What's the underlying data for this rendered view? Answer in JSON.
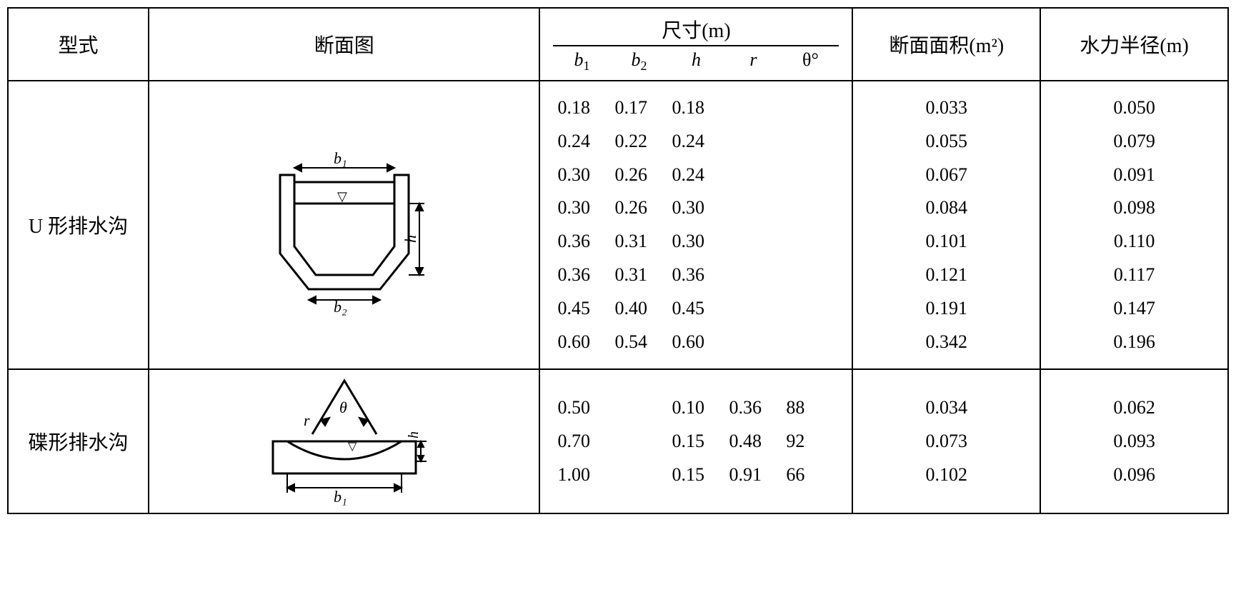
{
  "headers": {
    "type": "型式",
    "figure": "断面图",
    "dims_title": "尺寸(m)",
    "dims_sub": {
      "b1": "b",
      "b1_sub": "1",
      "b2": "b",
      "b2_sub": "2",
      "h": "h",
      "r": "r",
      "theta": "θ°"
    },
    "area": "断面面积(m²)",
    "hyd": "水力半径(m)"
  },
  "rows": [
    {
      "type_label": "U 形排水沟",
      "diagram": "u-channel",
      "data": [
        {
          "b1": "0.18",
          "b2": "0.17",
          "h": "0.18",
          "r": "",
          "theta": "",
          "area": "0.033",
          "hyd": "0.050"
        },
        {
          "b1": "0.24",
          "b2": "0.22",
          "h": "0.24",
          "r": "",
          "theta": "",
          "area": "0.055",
          "hyd": "0.079"
        },
        {
          "b1": "0.30",
          "b2": "0.26",
          "h": "0.24",
          "r": "",
          "theta": "",
          "area": "0.067",
          "hyd": "0.091"
        },
        {
          "b1": "0.30",
          "b2": "0.26",
          "h": "0.30",
          "r": "",
          "theta": "",
          "area": "0.084",
          "hyd": "0.098"
        },
        {
          "b1": "0.36",
          "b2": "0.31",
          "h": "0.30",
          "r": "",
          "theta": "",
          "area": "0.101",
          "hyd": "0.110"
        },
        {
          "b1": "0.36",
          "b2": "0.31",
          "h": "0.36",
          "r": "",
          "theta": "",
          "area": "0.121",
          "hyd": "0.117"
        },
        {
          "b1": "0.45",
          "b2": "0.40",
          "h": "0.45",
          "r": "",
          "theta": "",
          "area": "0.191",
          "hyd": "0.147"
        },
        {
          "b1": "0.60",
          "b2": "0.54",
          "h": "0.60",
          "r": "",
          "theta": "",
          "area": "0.342",
          "hyd": "0.196"
        }
      ]
    },
    {
      "type_label": "碟形排水沟",
      "diagram": "dish-channel",
      "data": [
        {
          "b1": "0.50",
          "b2": "",
          "h": "0.10",
          "r": "0.36",
          "theta": "88",
          "area": "0.034",
          "hyd": "0.062"
        },
        {
          "b1": "0.70",
          "b2": "",
          "h": "0.15",
          "r": "0.48",
          "theta": "92",
          "area": "0.073",
          "hyd": "0.093"
        },
        {
          "b1": "1.00",
          "b2": "",
          "h": "0.15",
          "r": "0.91",
          "theta": "66",
          "area": "0.102",
          "hyd": "0.096"
        }
      ]
    }
  ],
  "diagram_labels": {
    "u": {
      "b1": "b₁",
      "b2": "b₂",
      "h": "h",
      "water": "▽"
    },
    "dish": {
      "b1": "b₁",
      "h": "h",
      "r": "r",
      "theta": "θ",
      "water": "▽"
    }
  },
  "style": {
    "stroke": "#000000",
    "stroke_width": 3,
    "font_family": "Times New Roman, SimSun, serif",
    "label_fontsize": 22
  }
}
